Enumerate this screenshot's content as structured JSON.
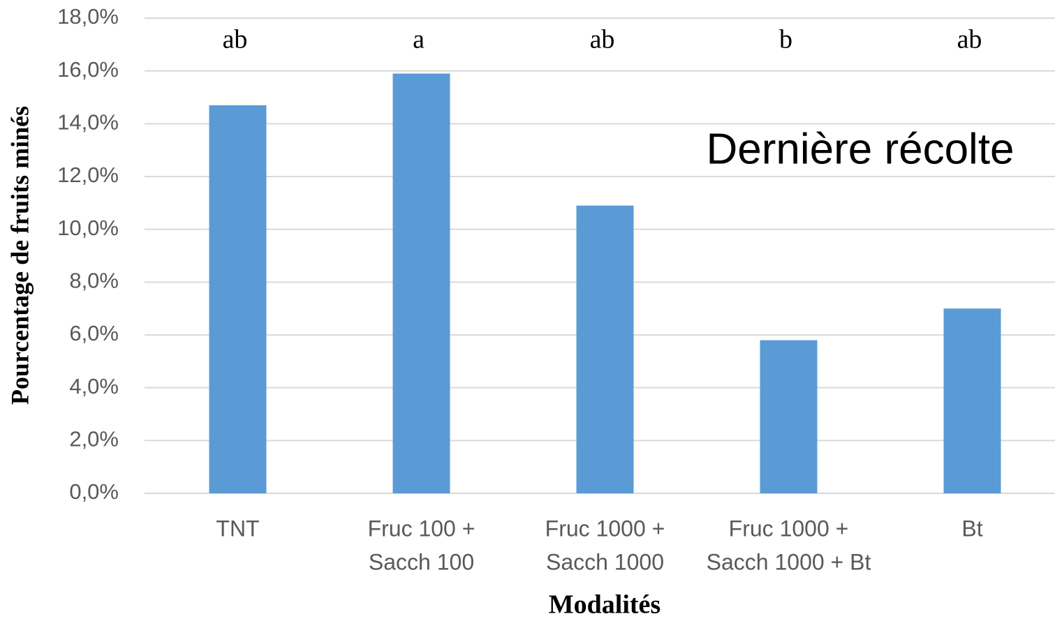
{
  "chart_data": {
    "type": "bar",
    "annotation": "Dernière récolte",
    "x_label": "Modalités",
    "y_label": "Pourcentage de fruits minés",
    "categories": [
      [
        "TNT"
      ],
      [
        "Fruc 100  +",
        "Sacch 100"
      ],
      [
        "Fruc 1000 +",
        "Sacch 1000"
      ],
      [
        "Fruc 1000 +",
        "Sacch 1000 + Bt"
      ],
      [
        "Bt"
      ]
    ],
    "values": [
      14.7,
      15.9,
      10.9,
      5.8,
      7.0
    ],
    "significance_letters": [
      "ab",
      "a",
      "ab",
      "b",
      "ab"
    ],
    "color": "#5b9bd5",
    "ylim": [
      0,
      18
    ],
    "yticks": [
      {
        "value": 0,
        "label": "0,0%"
      },
      {
        "value": 2,
        "label": "2,0%"
      },
      {
        "value": 4,
        "label": "4,0%"
      },
      {
        "value": 6,
        "label": "6,0%"
      },
      {
        "value": 8,
        "label": "8,0%"
      },
      {
        "value": 10,
        "label": "10,0%"
      },
      {
        "value": 12,
        "label": "12,0%"
      },
      {
        "value": 14,
        "label": "14,0%"
      },
      {
        "value": 16,
        "label": "16,0%"
      },
      {
        "value": 18,
        "label": "18,0%"
      }
    ],
    "grid": true
  }
}
